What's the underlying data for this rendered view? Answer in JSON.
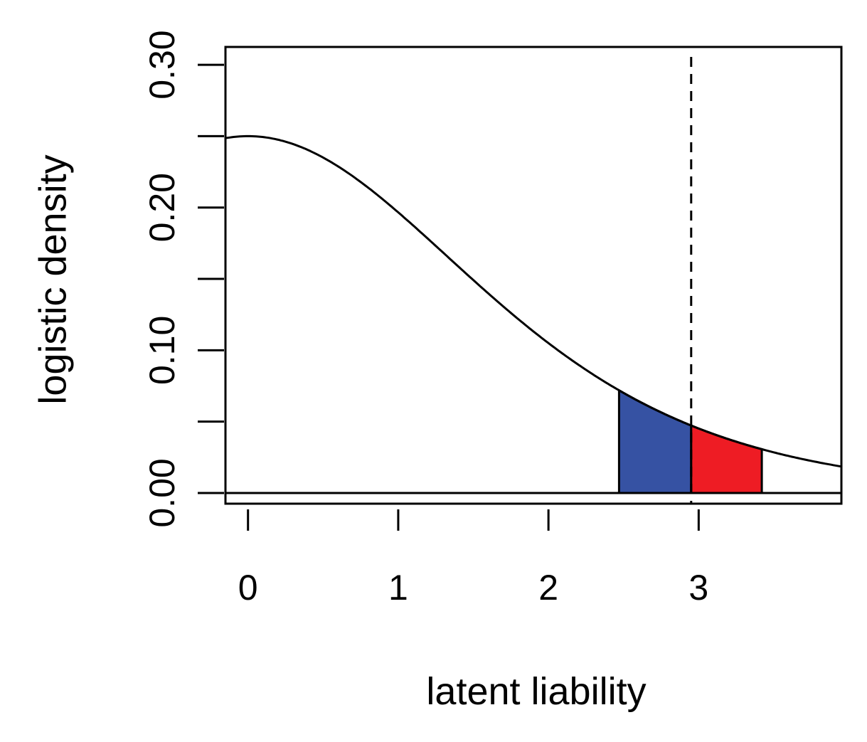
{
  "chart_data": {
    "type": "area",
    "title": "",
    "xlabel": "latent liability",
    "ylabel": "logistic density",
    "xlim": [
      -0.15,
      3.95
    ],
    "ylim": [
      -0.0075,
      0.3125
    ],
    "x_ticks": [
      0,
      1,
      2,
      3
    ],
    "x_tick_labels": [
      "0",
      "1",
      "2",
      "3"
    ],
    "y_ticks": [
      0.0,
      0.05,
      0.1,
      0.15,
      0.2,
      0.25,
      0.3
    ],
    "y_tick_labels": [
      "0.00",
      "",
      "0.10",
      "",
      "0.20",
      "",
      "0.30"
    ],
    "grid": false,
    "curve": {
      "distribution": "logistic",
      "location": 0,
      "scale": 1,
      "x_from": -0.15,
      "x_to": 3.95
    },
    "threshold": {
      "x": 2.95,
      "style": "dashed"
    },
    "shaded_regions": [
      {
        "x_from": 2.47,
        "x_to": 2.95,
        "color": "#3652a3"
      },
      {
        "x_from": 2.95,
        "x_to": 3.42,
        "color": "#ee1c24"
      }
    ],
    "baseline_y": 0
  }
}
